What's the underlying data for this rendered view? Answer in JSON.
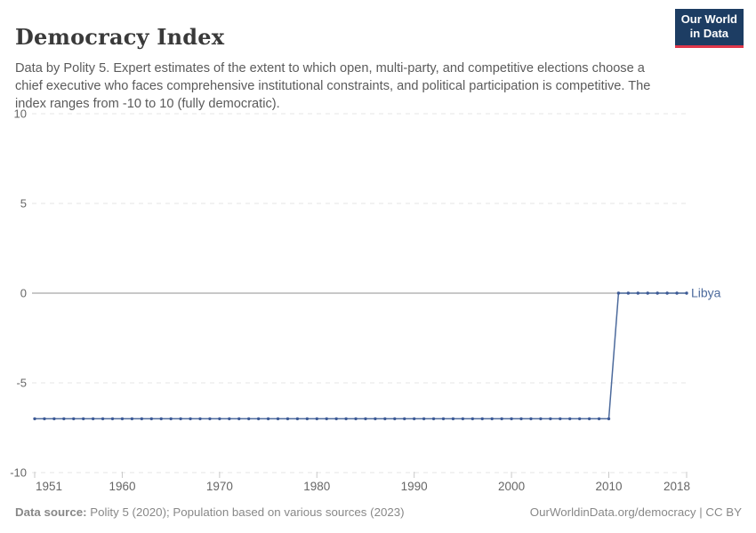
{
  "header": {
    "title": "Democracy Index",
    "subtitle": "Data by Polity 5. Expert estimates of the extent to which open, multi-party, and competitive elections choose a chief executive who faces comprehensive institutional constraints, and political participation is competitive. The index ranges from -10 to 10 (fully democratic)."
  },
  "logo": {
    "line1": "Our World",
    "line2": "in Data"
  },
  "footer": {
    "source_label": "Data source:",
    "source_text": " Polity 5 (2020); Population based on various sources (2023)",
    "right_text": "OurWorldinData.org/democracy | CC BY"
  },
  "theme": {
    "title-color": "#3a3a3a",
    "subtitle-color": "#5b5b5b",
    "logo-navy": "#1d3d63",
    "logo-red": "#e0374a",
    "footer-color": "#888888",
    "axis-text": "#666666",
    "grid-color": "#e5e5e5",
    "zero-line-color": "#a8a8a8",
    "tick-color": "#c9c9c9",
    "line-blue": "#4c6a9c",
    "dot-blue": "#3d5a96"
  },
  "chart_data": {
    "type": "line",
    "title": "Democracy Index",
    "xlabel": "",
    "ylabel": "",
    "xlim": [
      1951,
      2018
    ],
    "ylim": [
      -10,
      10
    ],
    "yticks": [
      10,
      5,
      0,
      -5,
      -10
    ],
    "xticks": [
      1951,
      1960,
      1970,
      1980,
      1990,
      2000,
      2010,
      2018
    ],
    "grid": "horizontal-dashed",
    "zero_line": true,
    "legend_position": "end-of-line-label",
    "x": [
      1951,
      1952,
      1953,
      1954,
      1955,
      1956,
      1957,
      1958,
      1959,
      1960,
      1961,
      1962,
      1963,
      1964,
      1965,
      1966,
      1967,
      1968,
      1969,
      1970,
      1971,
      1972,
      1973,
      1974,
      1975,
      1976,
      1977,
      1978,
      1979,
      1980,
      1981,
      1982,
      1983,
      1984,
      1985,
      1986,
      1987,
      1988,
      1989,
      1990,
      1991,
      1992,
      1993,
      1994,
      1995,
      1996,
      1997,
      1998,
      1999,
      2000,
      2001,
      2002,
      2003,
      2004,
      2005,
      2006,
      2007,
      2008,
      2009,
      2010,
      2011,
      2012,
      2013,
      2014,
      2015,
      2016,
      2017,
      2018
    ],
    "series": [
      {
        "name": "Libya",
        "values": [
          -7,
          -7,
          -7,
          -7,
          -7,
          -7,
          -7,
          -7,
          -7,
          -7,
          -7,
          -7,
          -7,
          -7,
          -7,
          -7,
          -7,
          -7,
          -7,
          -7,
          -7,
          -7,
          -7,
          -7,
          -7,
          -7,
          -7,
          -7,
          -7,
          -7,
          -7,
          -7,
          -7,
          -7,
          -7,
          -7,
          -7,
          -7,
          -7,
          -7,
          -7,
          -7,
          -7,
          -7,
          -7,
          -7,
          -7,
          -7,
          -7,
          -7,
          -7,
          -7,
          -7,
          -7,
          -7,
          -7,
          -7,
          -7,
          -7,
          -7,
          0,
          0,
          0,
          0,
          0,
          0,
          0,
          0
        ]
      }
    ]
  }
}
